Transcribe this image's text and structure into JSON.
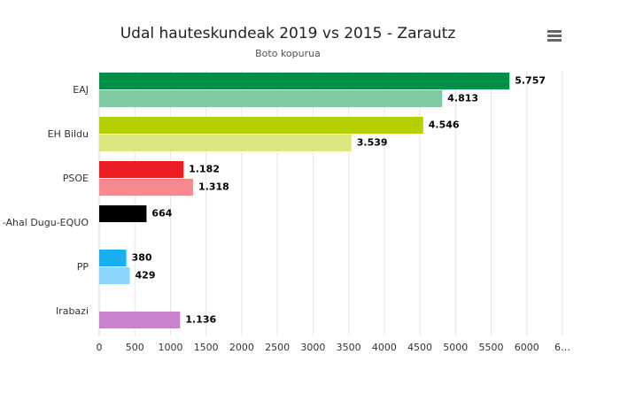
{
  "chart_data": {
    "type": "bar",
    "orientation": "horizontal",
    "title": "Udal hauteskundeak 2019 vs 2015 - Zarautz",
    "subtitle": "Boto kopurua",
    "categories": [
      "EAJ",
      "EH Bildu",
      "PSOE",
      "-Ahal Dugu-EQUO",
      "PP",
      "Irabazi"
    ],
    "series": [
      {
        "values": [
          5757,
          4546,
          1182,
          664,
          380,
          null
        ],
        "value_labels": [
          "5.757",
          "4.546",
          "1.182",
          "664",
          "380",
          null
        ],
        "colors": [
          "#00904a",
          "#b5cf00",
          "#ed1c24",
          "#000000",
          "#1aafef",
          null
        ]
      },
      {
        "values": [
          4813,
          3539,
          1318,
          null,
          429,
          1136
        ],
        "value_labels": [
          "4.813",
          "3.539",
          "1.318",
          null,
          "429",
          "1.136"
        ],
        "colors": [
          "#7fcaa3",
          "#d9e77e",
          "#f88a8f",
          null,
          "#8cd7f9",
          "#c983cc"
        ]
      }
    ],
    "xlim": [
      0,
      6500
    ],
    "xticks": [
      0,
      500,
      1000,
      1500,
      2000,
      2500,
      3000,
      3500,
      4000,
      4500,
      5000,
      5500,
      6000,
      {
        "value": 6500,
        "label": "6…"
      }
    ],
    "grid": true
  }
}
